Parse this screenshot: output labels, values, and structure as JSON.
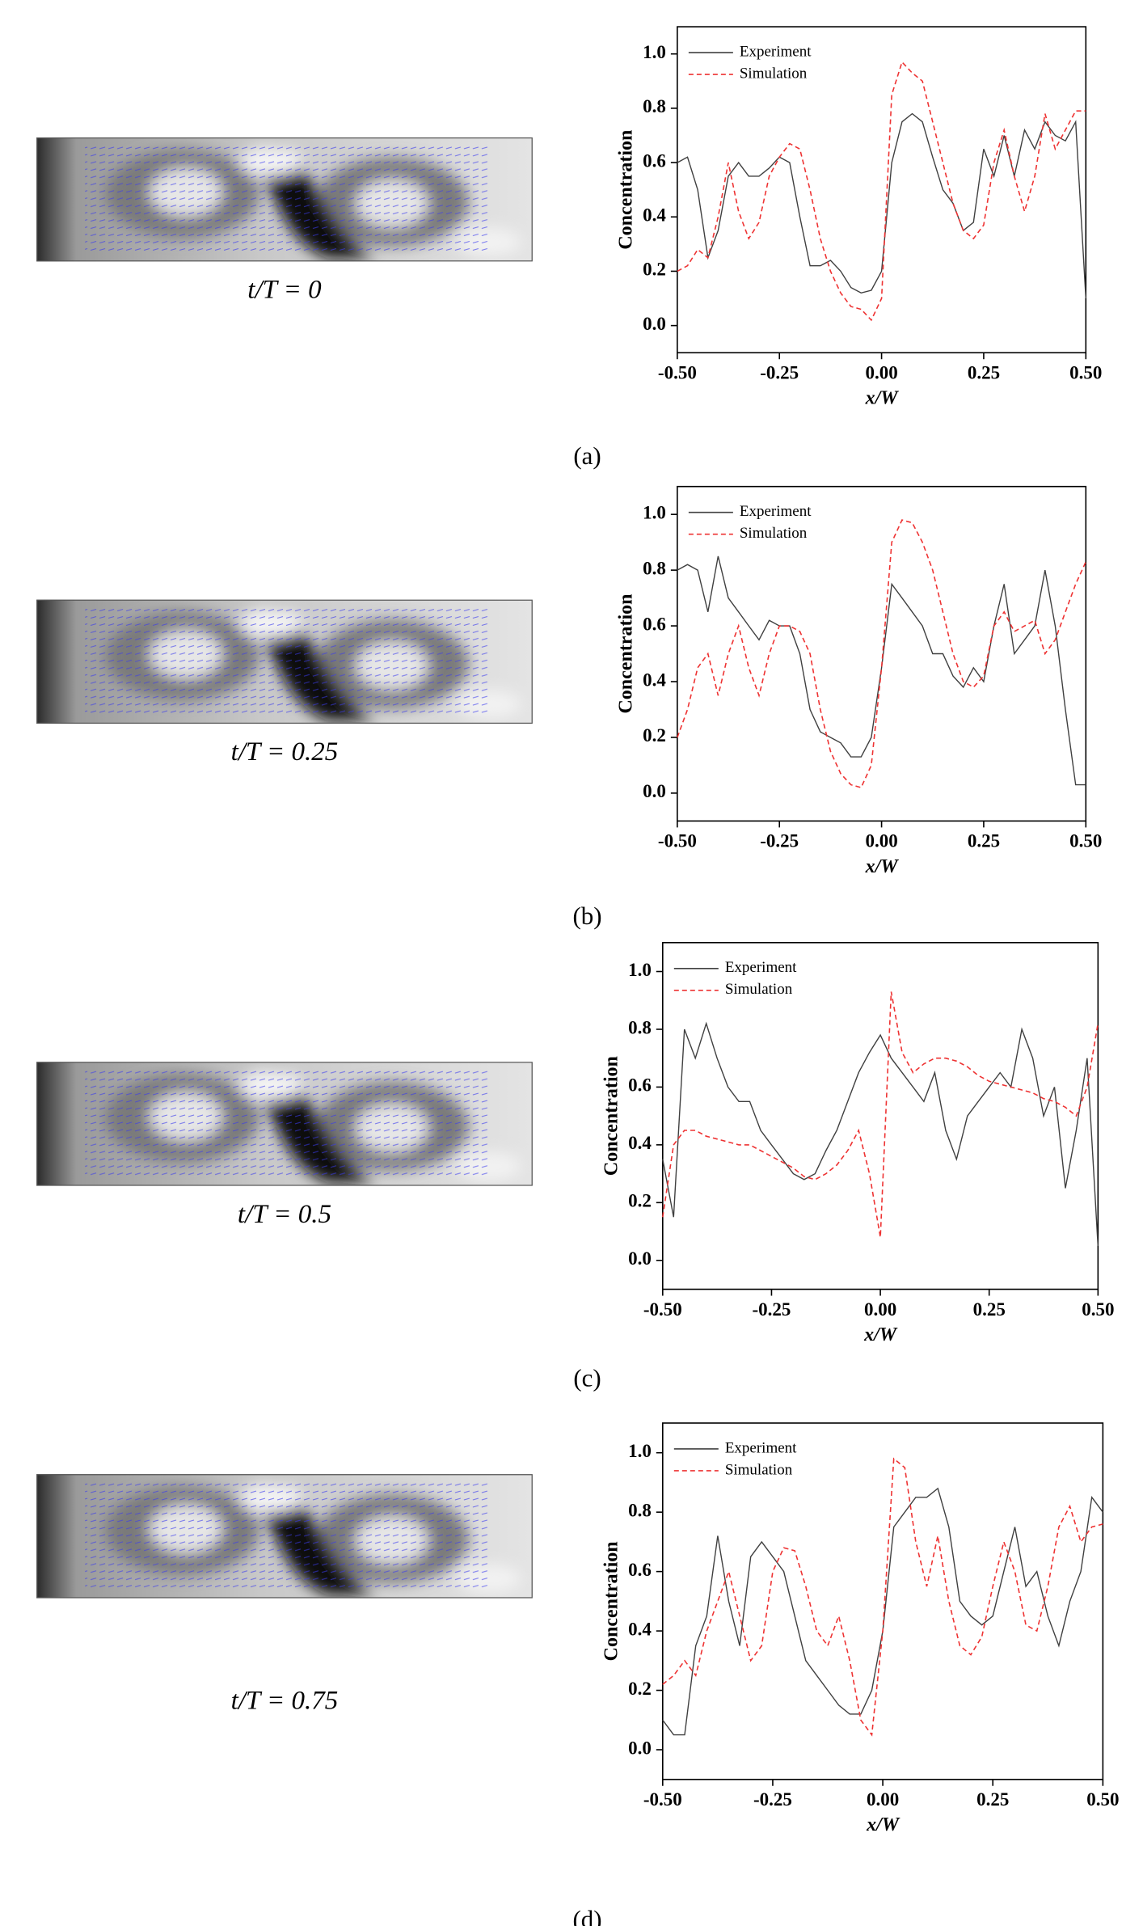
{
  "chart_data": [
    {
      "type": "line",
      "image_caption": "t/T = 0",
      "panel_label": "(a)",
      "x_label": "x/W",
      "y_label": "Concentration",
      "legend": "upper left",
      "x": [
        -0.5,
        -0.475,
        -0.45,
        -0.425,
        -0.4,
        -0.375,
        -0.35,
        -0.325,
        -0.3,
        -0.275,
        -0.25,
        -0.225,
        -0.2,
        -0.175,
        -0.15,
        -0.125,
        -0.1,
        -0.075,
        -0.05,
        -0.025,
        0,
        0.025,
        0.05,
        0.075,
        0.1,
        0.125,
        0.15,
        0.175,
        0.2,
        0.225,
        0.25,
        0.275,
        0.3,
        0.325,
        0.35,
        0.375,
        0.4,
        0.425,
        0.45,
        0.475,
        0.5
      ],
      "series": [
        {
          "name": "Experiment",
          "color": "#404040",
          "line_style": "solid",
          "values": [
            0.6,
            0.62,
            0.5,
            0.25,
            0.35,
            0.55,
            0.6,
            0.55,
            0.55,
            0.58,
            0.62,
            0.6,
            0.4,
            0.22,
            0.22,
            0.24,
            0.2,
            0.14,
            0.12,
            0.13,
            0.2,
            0.6,
            0.75,
            0.78,
            0.75,
            0.62,
            0.5,
            0.45,
            0.35,
            0.38,
            0.65,
            0.55,
            0.7,
            0.55,
            0.72,
            0.65,
            0.75,
            0.7,
            0.68,
            0.75,
            0.1
          ]
        },
        {
          "name": "Simulation",
          "color": "#ee3333",
          "line_style": "dashed",
          "values": [
            0.2,
            0.22,
            0.28,
            0.25,
            0.4,
            0.6,
            0.42,
            0.32,
            0.38,
            0.55,
            0.62,
            0.67,
            0.65,
            0.5,
            0.32,
            0.2,
            0.12,
            0.07,
            0.06,
            0.02,
            0.1,
            0.85,
            0.97,
            0.93,
            0.9,
            0.75,
            0.6,
            0.45,
            0.35,
            0.32,
            0.37,
            0.6,
            0.72,
            0.55,
            0.42,
            0.55,
            0.78,
            0.65,
            0.72,
            0.79,
            0.79
          ]
        }
      ],
      "xlim": [
        -0.5,
        0.5
      ],
      "ylim": [
        -0.1,
        1.1
      ],
      "xticks": [
        {
          "value": -0.5,
          "label": "-0.50"
        },
        {
          "value": -0.25,
          "label": "-0.25"
        },
        {
          "value": 0,
          "label": "0.00"
        },
        {
          "value": 0.25,
          "label": "0.25"
        },
        {
          "value": 0.5,
          "label": "0.50"
        }
      ],
      "yticks": [
        {
          "value": 0,
          "label": "0.0"
        },
        0.2,
        0.4,
        0.6,
        0.8,
        {
          "value": 1,
          "label": "1.0"
        }
      ]
    },
    {
      "type": "line",
      "image_caption": "t/T = 0.25",
      "panel_label": "(b)",
      "x_label": "x/W",
      "y_label": "Concentration",
      "legend": "upper left",
      "x": [
        -0.5,
        -0.475,
        -0.45,
        -0.425,
        -0.4,
        -0.375,
        -0.35,
        -0.325,
        -0.3,
        -0.275,
        -0.25,
        -0.225,
        -0.2,
        -0.175,
        -0.15,
        -0.125,
        -0.1,
        -0.075,
        -0.05,
        -0.025,
        0,
        0.025,
        0.05,
        0.075,
        0.1,
        0.125,
        0.15,
        0.175,
        0.2,
        0.225,
        0.25,
        0.275,
        0.3,
        0.325,
        0.35,
        0.375,
        0.4,
        0.425,
        0.45,
        0.475,
        0.5
      ],
      "series": [
        {
          "name": "Experiment",
          "color": "#404040",
          "line_style": "solid",
          "values": [
            0.8,
            0.82,
            0.8,
            0.65,
            0.85,
            0.7,
            0.65,
            0.6,
            0.55,
            0.62,
            0.6,
            0.6,
            0.5,
            0.3,
            0.22,
            0.2,
            0.18,
            0.13,
            0.13,
            0.2,
            0.45,
            0.75,
            0.7,
            0.65,
            0.6,
            0.5,
            0.5,
            0.42,
            0.38,
            0.45,
            0.4,
            0.6,
            0.75,
            0.5,
            0.55,
            0.6,
            0.8,
            0.6,
            0.3,
            0.03,
            0.03
          ]
        },
        {
          "name": "Simulation",
          "color": "#ee3333",
          "line_style": "dashed",
          "values": [
            0.2,
            0.3,
            0.45,
            0.5,
            0.35,
            0.5,
            0.6,
            0.45,
            0.35,
            0.5,
            0.6,
            0.6,
            0.58,
            0.5,
            0.3,
            0.15,
            0.07,
            0.03,
            0.02,
            0.1,
            0.45,
            0.9,
            0.98,
            0.97,
            0.9,
            0.8,
            0.65,
            0.5,
            0.4,
            0.38,
            0.42,
            0.6,
            0.65,
            0.58,
            0.6,
            0.62,
            0.5,
            0.55,
            0.65,
            0.75,
            0.83
          ]
        }
      ],
      "xlim": [
        -0.5,
        0.5
      ],
      "ylim": [
        -0.1,
        1.1
      ],
      "xticks": [
        {
          "value": -0.5,
          "label": "-0.50"
        },
        {
          "value": -0.25,
          "label": "-0.25"
        },
        {
          "value": 0,
          "label": "0.00"
        },
        {
          "value": 0.25,
          "label": "0.25"
        },
        {
          "value": 0.5,
          "label": "0.50"
        }
      ],
      "yticks": [
        {
          "value": 0,
          "label": "0.0"
        },
        0.2,
        0.4,
        0.6,
        0.8,
        {
          "value": 1,
          "label": "1.0"
        }
      ]
    },
    {
      "type": "line",
      "image_caption": "t/T = 0.5",
      "panel_label": "(c)",
      "x_label": "x/W",
      "y_label": "Concentration",
      "legend": "upper left",
      "x": [
        -0.5,
        -0.475,
        -0.45,
        -0.425,
        -0.4,
        -0.375,
        -0.35,
        -0.325,
        -0.3,
        -0.275,
        -0.25,
        -0.225,
        -0.2,
        -0.175,
        -0.15,
        -0.125,
        -0.1,
        -0.075,
        -0.05,
        -0.025,
        0,
        0.025,
        0.05,
        0.075,
        0.1,
        0.125,
        0.15,
        0.175,
        0.2,
        0.225,
        0.25,
        0.275,
        0.3,
        0.325,
        0.35,
        0.375,
        0.4,
        0.425,
        0.45,
        0.475,
        0.5
      ],
      "series": [
        {
          "name": "Experiment",
          "color": "#404040",
          "line_style": "solid",
          "values": [
            0.35,
            0.15,
            0.8,
            0.7,
            0.82,
            0.7,
            0.6,
            0.55,
            0.55,
            0.45,
            0.4,
            0.35,
            0.3,
            0.28,
            0.3,
            0.38,
            0.45,
            0.55,
            0.65,
            0.72,
            0.78,
            0.7,
            0.65,
            0.6,
            0.55,
            0.65,
            0.45,
            0.35,
            0.5,
            0.55,
            0.6,
            0.65,
            0.6,
            0.8,
            0.7,
            0.5,
            0.6,
            0.25,
            0.45,
            0.7,
            0.05
          ]
        },
        {
          "name": "Simulation",
          "color": "#ee3333",
          "line_style": "dashed",
          "values": [
            0.15,
            0.4,
            0.45,
            0.45,
            0.43,
            0.42,
            0.41,
            0.4,
            0.4,
            0.38,
            0.36,
            0.34,
            0.32,
            0.29,
            0.28,
            0.3,
            0.33,
            0.38,
            0.45,
            0.3,
            0.08,
            0.93,
            0.72,
            0.65,
            0.68,
            0.7,
            0.7,
            0.69,
            0.67,
            0.64,
            0.62,
            0.61,
            0.6,
            0.59,
            0.58,
            0.56,
            0.55,
            0.53,
            0.5,
            0.6,
            0.82
          ]
        }
      ],
      "xlim": [
        -0.5,
        0.5
      ],
      "ylim": [
        -0.1,
        1.1
      ],
      "xticks": [
        {
          "value": -0.5,
          "label": "-0.50"
        },
        {
          "value": -0.25,
          "label": "-0.25"
        },
        {
          "value": 0,
          "label": "0.00"
        },
        {
          "value": 0.25,
          "label": "0.25"
        },
        {
          "value": 0.5,
          "label": "0.50"
        }
      ],
      "yticks": [
        {
          "value": 0,
          "label": "0.0"
        },
        0.2,
        0.4,
        0.6,
        0.8,
        {
          "value": 1,
          "label": "1.0"
        }
      ]
    },
    {
      "type": "line",
      "image_caption": "t/T = 0.75",
      "panel_label": "(d)",
      "x_label": "x/W",
      "y_label": "Concentration",
      "legend": "upper left",
      "x": [
        -0.5,
        -0.475,
        -0.45,
        -0.425,
        -0.4,
        -0.375,
        -0.35,
        -0.325,
        -0.3,
        -0.275,
        -0.25,
        -0.225,
        -0.2,
        -0.175,
        -0.15,
        -0.125,
        -0.1,
        -0.075,
        -0.05,
        -0.025,
        0,
        0.025,
        0.05,
        0.075,
        0.1,
        0.125,
        0.15,
        0.175,
        0.2,
        0.225,
        0.25,
        0.275,
        0.3,
        0.325,
        0.35,
        0.375,
        0.4,
        0.425,
        0.45,
        0.475,
        0.5
      ],
      "series": [
        {
          "name": "Experiment",
          "color": "#404040",
          "line_style": "solid",
          "values": [
            0.1,
            0.05,
            0.05,
            0.35,
            0.45,
            0.72,
            0.5,
            0.35,
            0.65,
            0.7,
            0.65,
            0.6,
            0.45,
            0.3,
            0.25,
            0.2,
            0.15,
            0.12,
            0.12,
            0.2,
            0.4,
            0.75,
            0.8,
            0.85,
            0.85,
            0.88,
            0.75,
            0.5,
            0.45,
            0.42,
            0.45,
            0.6,
            0.75,
            0.55,
            0.6,
            0.45,
            0.35,
            0.5,
            0.6,
            0.85,
            0.8
          ]
        },
        {
          "name": "Simulation",
          "color": "#ee3333",
          "line_style": "dashed",
          "values": [
            0.22,
            0.25,
            0.3,
            0.25,
            0.4,
            0.5,
            0.6,
            0.45,
            0.3,
            0.35,
            0.6,
            0.68,
            0.67,
            0.55,
            0.4,
            0.35,
            0.45,
            0.3,
            0.1,
            0.05,
            0.4,
            0.98,
            0.95,
            0.7,
            0.55,
            0.72,
            0.5,
            0.35,
            0.32,
            0.38,
            0.55,
            0.7,
            0.6,
            0.42,
            0.4,
            0.55,
            0.75,
            0.82,
            0.7,
            0.75,
            0.76
          ]
        }
      ],
      "xlim": [
        -0.5,
        0.5
      ],
      "ylim": [
        -0.1,
        1.1
      ],
      "xticks": [
        {
          "value": -0.5,
          "label": "-0.50"
        },
        {
          "value": -0.25,
          "label": "-0.25"
        },
        {
          "value": 0,
          "label": "0.00"
        },
        {
          "value": 0.25,
          "label": "0.25"
        },
        {
          "value": 0.5,
          "label": "0.50"
        }
      ],
      "yticks": [
        {
          "value": 0,
          "label": "0.0"
        },
        0.2,
        0.4,
        0.6,
        0.8,
        {
          "value": 1,
          "label": "1.0"
        }
      ]
    }
  ]
}
